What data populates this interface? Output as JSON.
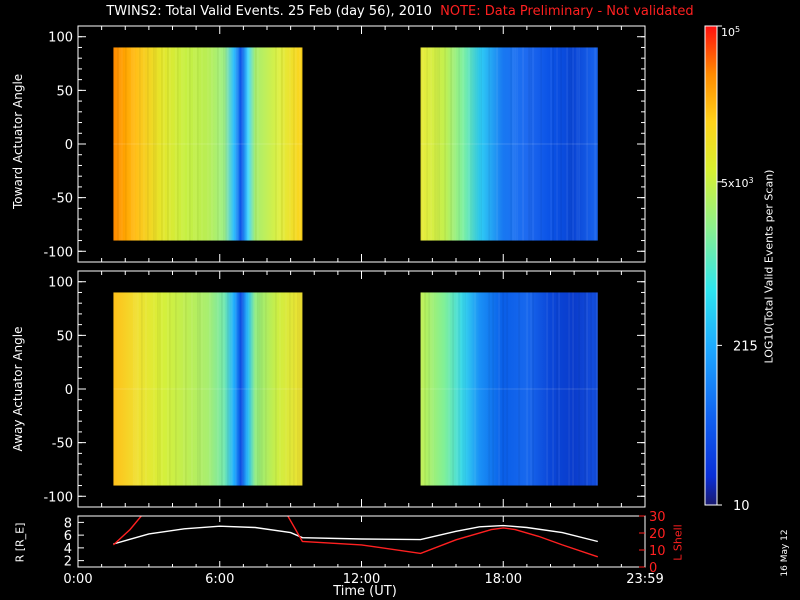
{
  "title": {
    "main": "TWINS2: Total Valid Events. 25 Feb (day  56), 2010",
    "note": "NOTE: Data Preliminary - Not validated"
  },
  "colors": {
    "background": "#000000",
    "axis": "#ffffff",
    "note": "#ff2020",
    "lshell": "#ff2020",
    "radius": "#ffffff"
  },
  "date_stamp": "16 May 12",
  "chart_data": [
    {
      "type": "heatmap",
      "ylabel": "Toward Actuator Angle",
      "ylim": [
        -110,
        110
      ],
      "yticks": [
        "100",
        "50",
        "0",
        "-50",
        "-100"
      ],
      "xlim_hours": [
        0,
        24
      ],
      "data_angle_range": [
        -90,
        90
      ],
      "blocks": [
        {
          "start_hour": 1.5,
          "end_hour": 9.5,
          "profile": [
            [
              1.5,
              "#ff8a00"
            ],
            [
              2.0,
              "#ffa500"
            ],
            [
              2.5,
              "#ffc21a"
            ],
            [
              3.5,
              "#e6e62a"
            ],
            [
              4.5,
              "#c8f040"
            ],
            [
              5.5,
              "#b8ee55"
            ],
            [
              6.2,
              "#9ff08a"
            ],
            [
              6.6,
              "#2fc0ff"
            ],
            [
              6.9,
              "#0a4ee6"
            ],
            [
              7.2,
              "#40d6ff"
            ],
            [
              7.5,
              "#a8ee70"
            ],
            [
              8.5,
              "#ddf040"
            ],
            [
              9.5,
              "#ffd21a"
            ]
          ]
        },
        {
          "start_hour": 14.5,
          "end_hour": 22.0,
          "profile": [
            [
              14.5,
              "#eaeb38"
            ],
            [
              15.5,
              "#c3f04e"
            ],
            [
              16.3,
              "#7ef0a0"
            ],
            [
              17.0,
              "#30d0f5"
            ],
            [
              18.0,
              "#1878f2"
            ],
            [
              19.0,
              "#1e6af0"
            ],
            [
              20.0,
              "#0a52e6"
            ],
            [
              21.0,
              "#0a46d6"
            ],
            [
              22.0,
              "#1a66ee"
            ]
          ]
        }
      ]
    },
    {
      "type": "heatmap",
      "ylabel": "Away Actuator Angle",
      "ylim": [
        -110,
        110
      ],
      "yticks": [
        "100",
        "50",
        "0",
        "-50",
        "-100"
      ],
      "xlim_hours": [
        0,
        24
      ],
      "data_angle_range": [
        -90,
        90
      ],
      "blocks": [
        {
          "start_hour": 1.5,
          "end_hour": 9.5,
          "profile": [
            [
              1.5,
              "#ffc01a"
            ],
            [
              2.5,
              "#f0e030"
            ],
            [
              3.5,
              "#d8f038"
            ],
            [
              4.5,
              "#c0ee50"
            ],
            [
              5.5,
              "#a8ee70"
            ],
            [
              6.2,
              "#70e8b0"
            ],
            [
              6.6,
              "#20b0ff"
            ],
            [
              6.9,
              "#0a48e0"
            ],
            [
              7.2,
              "#30c8ff"
            ],
            [
              7.5,
              "#90ec80"
            ],
            [
              8.5,
              "#d0ee40"
            ],
            [
              9.5,
              "#f0e030"
            ]
          ]
        },
        {
          "start_hour": 14.5,
          "end_hour": 22.0,
          "profile": [
            [
              14.5,
              "#c0f050"
            ],
            [
              15.5,
              "#80f098"
            ],
            [
              16.3,
              "#38d8ee"
            ],
            [
              17.0,
              "#1a90f6"
            ],
            [
              18.0,
              "#0a5ee8"
            ],
            [
              19.0,
              "#1868ee"
            ],
            [
              20.0,
              "#0a46d8"
            ],
            [
              21.0,
              "#0a3ccc"
            ],
            [
              22.0,
              "#1450e0"
            ]
          ]
        }
      ]
    },
    {
      "type": "line",
      "ylabel_left": "R [R_E]",
      "ylabel_right": "L Shell",
      "ylim_left": [
        1,
        9
      ],
      "ylim_right": [
        0,
        30
      ],
      "yticks_left": [
        "8",
        "6",
        "4",
        "2"
      ],
      "yticks_right": [
        "30",
        "20",
        "10",
        "0"
      ],
      "xlabel": "Time (UT)",
      "xticks": [
        "0:00",
        "6:00",
        "12:00",
        "18:00",
        "23:59"
      ],
      "series": [
        {
          "axis": "left",
          "color": "#ffffff",
          "x": [
            1.5,
            3.0,
            4.5,
            6.0,
            7.5,
            9.0,
            9.5,
            12.0,
            14.5,
            16.0,
            17.0,
            18.0,
            19.0,
            20.5,
            22.0
          ],
          "y": [
            4.6,
            6.2,
            7.0,
            7.4,
            7.2,
            6.4,
            5.6,
            5.4,
            5.3,
            6.6,
            7.3,
            7.5,
            7.2,
            6.4,
            5.0
          ]
        },
        {
          "axis": "right",
          "color": "#ff2020",
          "x": [
            1.5,
            2.2,
            2.8,
            8.8,
            9.5,
            12.0,
            14.5,
            16.0,
            17.5,
            18.0,
            18.5,
            19.5,
            20.5,
            22.0
          ],
          "y": [
            13,
            22,
            32,
            32,
            15,
            13,
            8,
            16,
            22,
            23,
            22,
            18,
            13,
            6
          ]
        }
      ]
    }
  ],
  "colorbar": {
    "label": "LOG10(Total Valid Events per Scan)",
    "tick_labels": [
      {
        "text": "10",
        "log_value": 1.0
      },
      {
        "text": "215",
        "log_value": 2.333
      },
      {
        "text": "5x10^3",
        "log_value": 3.699
      },
      {
        "text": "10^5",
        "log_value": 5.0
      }
    ],
    "range_log": [
      1.0,
      5.0
    ]
  }
}
